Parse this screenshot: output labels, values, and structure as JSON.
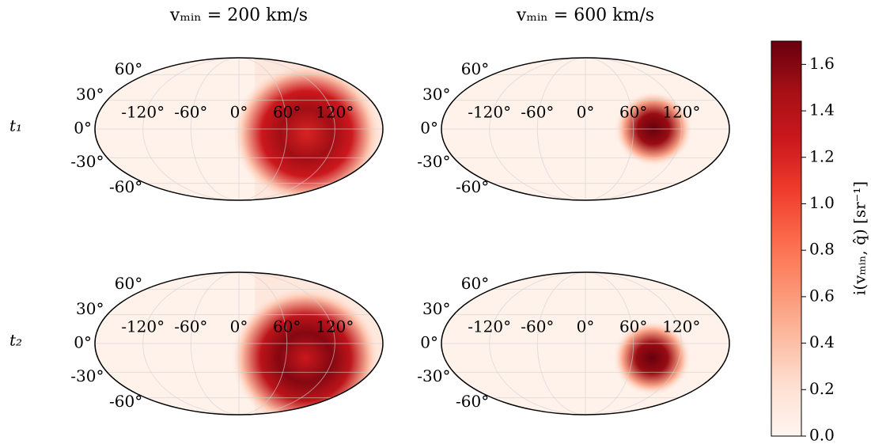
{
  "chart_data": {
    "type": "mollweide",
    "columns": [
      "vₘᵢₙ = 200 km/s",
      "vₘᵢₙ = 600 km/s"
    ],
    "rows": [
      "t₁",
      "t₂"
    ],
    "xticks": [
      {
        "value": -120,
        "label": "-120°"
      },
      {
        "value": -60,
        "label": "-60°"
      },
      {
        "value": 0,
        "label": "0°"
      },
      {
        "value": 60,
        "label": "60°"
      },
      {
        "value": 120,
        "label": "120°"
      }
    ],
    "yticks": [
      {
        "value": 60,
        "label": "60°"
      },
      {
        "value": 30,
        "label": "30°"
      },
      {
        "value": 0,
        "label": "0°"
      },
      {
        "value": -30,
        "label": "-30°"
      },
      {
        "value": -60,
        "label": "-60°"
      }
    ],
    "grid": true,
    "panels": [
      {
        "row": 0,
        "col": 0,
        "peak_lon": 85,
        "peak_lat": -5,
        "peak_value": 1.5
      },
      {
        "row": 0,
        "col": 1,
        "peak_lon": 85,
        "peak_lat": 0,
        "peak_value": 1.7
      },
      {
        "row": 1,
        "col": 0,
        "peak_lon": 85,
        "peak_lat": -15,
        "peak_value": 1.6
      },
      {
        "row": 1,
        "col": 1,
        "peak_lon": 85,
        "peak_lat": -15,
        "peak_value": 1.7
      }
    ],
    "colorbar": {
      "label": "i(vₘᵢₙ, q̂) [sr⁻¹]",
      "lim": [
        0,
        1.7
      ],
      "ticks": [
        {
          "value": 0,
          "label": "0.0"
        },
        0.2,
        0.4,
        0.6,
        0.8,
        {
          "value": 1,
          "label": "1.0"
        },
        1.2,
        1.4,
        1.6
      ]
    }
  }
}
